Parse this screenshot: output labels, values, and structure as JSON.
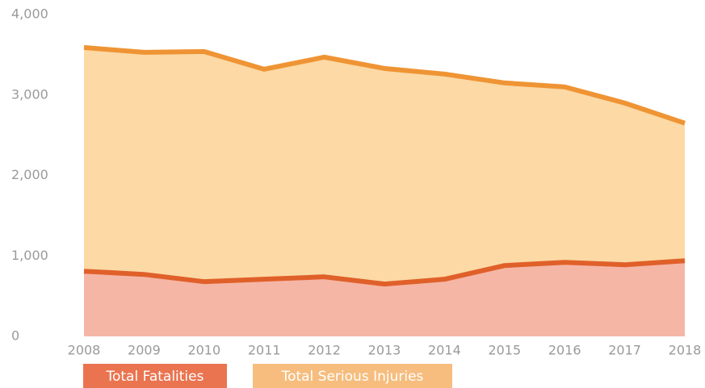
{
  "chart_data": {
    "type": "area",
    "categories": [
      "2008",
      "2009",
      "2010",
      "2011",
      "2012",
      "2013",
      "2014",
      "2015",
      "2016",
      "2017",
      "2018"
    ],
    "series": [
      {
        "name": "Total Fatalities",
        "color": "#e0602a",
        "fill": "#f5b6a6",
        "values": [
          810,
          770,
          680,
          710,
          740,
          650,
          710,
          880,
          920,
          890,
          940
        ]
      },
      {
        "name": "Total Serious Injuries",
        "color": "#ef9434",
        "fill": "#fcd9a5",
        "values": [
          3590,
          3530,
          3540,
          3320,
          3470,
          3330,
          3260,
          3150,
          3100,
          2900,
          2650
        ]
      }
    ],
    "ylim": [
      0,
      4000
    ],
    "yticks": [
      0,
      {
        "value": 1000,
        "label": "1,000"
      },
      {
        "value": 2000,
        "label": "2,000"
      },
      {
        "value": 3000,
        "label": "3,000"
      },
      {
        "value": 4000,
        "label": "4,000"
      }
    ],
    "grid": false
  }
}
